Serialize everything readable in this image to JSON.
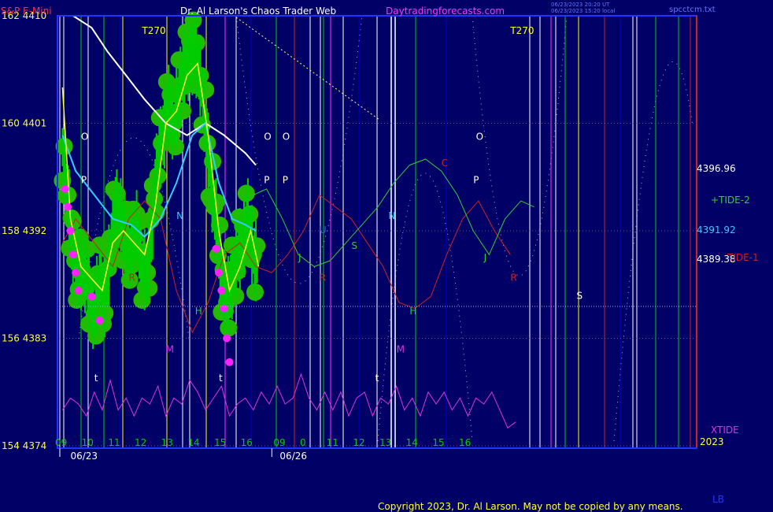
{
  "header": {
    "instrument": "S&P E-Mini",
    "title": "Dr. Al Larson's Chaos Trader Web",
    "site": "Daytradingforecasts.com",
    "timestamp_line1": "06/23/2023 20:20 UT",
    "timestamp_line2": "06/23/2023 15:20 local",
    "file": "spcctcm.txt"
  },
  "colors": {
    "background": "#000066",
    "price_bars": "#00cc00",
    "green_circles": "#22bb00",
    "magenta_dots": "#ff22ff",
    "yellow_ma": "#ffff33",
    "white_ma": "#ffffff",
    "cyan_ma": "#33ccff",
    "tide1": "#cc2222",
    "tide2": "#33cc33",
    "xtide": "#dd33dd",
    "frame": "#2233ff"
  },
  "footer": {
    "copyright": "Copyright 2023, Dr. Al Larson. May not be copied by any means.",
    "corner": "LB",
    "year": "2023"
  },
  "chart_data": {
    "type": "line",
    "y_axis": {
      "ticks": [
        {
          "index": "162",
          "price": "4410"
        },
        {
          "index": "160",
          "price": "4401"
        },
        {
          "index": "158",
          "price": "4392"
        },
        {
          "index": "156",
          "price": "4383"
        },
        {
          "index": "154",
          "price": "4374"
        }
      ],
      "ylim": [
        4374,
        4410
      ]
    },
    "x_axis": {
      "dates": [
        "06/23",
        "06/26"
      ],
      "hours_day1": [
        "09",
        "10",
        "11",
        "12",
        "13",
        "14",
        "15",
        "16"
      ],
      "hours_day2": [
        "09",
        "0",
        "11",
        "12",
        "13",
        "14",
        "15",
        "16"
      ],
      "span_hours": [
        9,
        33
      ],
      "day_break_hour": 16.2
    },
    "series_labels": [
      {
        "name": "+TIDE-2",
        "value": "4396.96",
        "color": "#33cc33"
      },
      {
        "name": "TIDE-1",
        "value": "4389.38",
        "color": "#cc2222"
      },
      {
        "name": "XTIDE",
        "value": "",
        "color": "#dd33dd"
      }
    ],
    "right_prices": {
      "upper": "4396.96",
      "middle": "4391.92",
      "lower": "4389.38"
    },
    "annotations": [
      {
        "text": "T270",
        "hour": 12.1,
        "price": 4408.5
      },
      {
        "text": "T270",
        "hour": 26.0,
        "price": 4408.5
      },
      {
        "text": "O",
        "hour": 9.8,
        "price": 4399.6
      },
      {
        "text": "P",
        "hour": 9.8,
        "price": 4396.0
      },
      {
        "text": "N",
        "hour": 13.4,
        "price": 4393.0
      },
      {
        "text": "O",
        "hour": 16.7,
        "price": 4399.6
      },
      {
        "text": "P",
        "hour": 16.7,
        "price": 4396.0
      },
      {
        "text": "O",
        "hour": 17.4,
        "price": 4399.6
      },
      {
        "text": "P",
        "hour": 17.4,
        "price": 4396.0
      },
      {
        "text": "U",
        "hour": 18.8,
        "price": 4391.8
      },
      {
        "text": "J",
        "hour": 18.0,
        "price": 4389.5
      },
      {
        "text": "R",
        "hour": 18.8,
        "price": 4387.8
      },
      {
        "text": "S",
        "hour": 20.0,
        "price": 4390.5
      },
      {
        "text": "N",
        "hour": 21.4,
        "price": 4393.0
      },
      {
        "text": "C",
        "hour": 23.4,
        "price": 4397.4
      },
      {
        "text": "O",
        "hour": 24.7,
        "price": 4399.6
      },
      {
        "text": "P",
        "hour": 24.6,
        "price": 4396.0
      },
      {
        "text": "J",
        "hour": 25.0,
        "price": 4389.5
      },
      {
        "text": "R",
        "hour": 26.0,
        "price": 4387.8
      },
      {
        "text": "H",
        "hour": 14.1,
        "price": 4385.0
      },
      {
        "text": "H",
        "hour": 22.2,
        "price": 4385.0
      },
      {
        "text": "R",
        "hour": 11.6,
        "price": 4387.8
      },
      {
        "text": "M",
        "hour": 13.0,
        "price": 4381.8
      },
      {
        "text": "M",
        "hour": 21.7,
        "price": 4381.8
      },
      {
        "text": "t",
        "hour": 10.3,
        "price": 4379.4
      },
      {
        "text": "t",
        "hour": 15.0,
        "price": 4379.4
      },
      {
        "text": "t",
        "hour": 20.9,
        "price": 4379.4
      },
      {
        "text": "S",
        "hour": 28.5,
        "price": 4386.3
      }
    ],
    "price_path": [
      [
        9.1,
        4399
      ],
      [
        9.3,
        4395
      ],
      [
        9.5,
        4390
      ],
      [
        9.7,
        4388.5
      ],
      [
        9.9,
        4389
      ],
      [
        10.1,
        4387
      ],
      [
        10.3,
        4385
      ],
      [
        10.5,
        4388
      ],
      [
        10.7,
        4386.5
      ],
      [
        10.9,
        4390
      ],
      [
        11.1,
        4394
      ],
      [
        11.3,
        4393
      ],
      [
        11.5,
        4391
      ],
      [
        11.7,
        4390.5
      ],
      [
        11.9,
        4392
      ],
      [
        12.1,
        4389
      ],
      [
        12.3,
        4388.5
      ],
      [
        12.5,
        4393
      ],
      [
        12.7,
        4398
      ],
      [
        12.9,
        4400
      ],
      [
        13.1,
        4402.5
      ],
      [
        13.3,
        4401
      ],
      [
        13.5,
        4403.5
      ],
      [
        13.7,
        4405.5
      ],
      [
        13.9,
        4406.5
      ],
      [
        14.1,
        4407
      ],
      [
        14.3,
        4405
      ],
      [
        14.5,
        4401
      ],
      [
        14.7,
        4396
      ],
      [
        14.9,
        4393
      ],
      [
        15.1,
        4388
      ],
      [
        15.3,
        4386
      ],
      [
        15.5,
        4388
      ],
      [
        15.7,
        4390
      ],
      [
        15.9,
        4391
      ],
      [
        16.1,
        4393
      ],
      [
        16.3,
        4390
      ],
      [
        16.5,
        4389
      ]
    ],
    "white_ma": [
      [
        9.5,
        4410
      ],
      [
        10.2,
        4409
      ],
      [
        10.8,
        4407
      ],
      [
        11.5,
        4405
      ],
      [
        12.2,
        4403
      ],
      [
        13,
        4401
      ],
      [
        13.8,
        4400
      ],
      [
        14.5,
        4401
      ],
      [
        15.2,
        4400
      ],
      [
        16,
        4398.5
      ],
      [
        16.4,
        4397.5
      ]
    ],
    "cyan_ma": [
      [
        9.1,
        4400
      ],
      [
        9.6,
        4397
      ],
      [
        10.3,
        4395
      ],
      [
        11,
        4393
      ],
      [
        11.7,
        4392.5
      ],
      [
        12.2,
        4391.5
      ],
      [
        12.8,
        4393
      ],
      [
        13.4,
        4396
      ],
      [
        14.0,
        4400
      ],
      [
        14.5,
        4401
      ],
      [
        15.0,
        4396
      ],
      [
        15.5,
        4393
      ],
      [
        16.0,
        4392.5
      ],
      [
        16.4,
        4392
      ]
    ],
    "yellow_ma": [
      [
        9.1,
        4404
      ],
      [
        9.4,
        4393
      ],
      [
        9.8,
        4389
      ],
      [
        10.2,
        4388
      ],
      [
        10.6,
        4387
      ],
      [
        11.0,
        4391
      ],
      [
        11.4,
        4392
      ],
      [
        11.8,
        4391
      ],
      [
        12.2,
        4390
      ],
      [
        12.6,
        4394
      ],
      [
        13.0,
        4401
      ],
      [
        13.4,
        4402
      ],
      [
        13.8,
        4405
      ],
      [
        14.2,
        4406
      ],
      [
        14.6,
        4400
      ],
      [
        15.0,
        4392
      ],
      [
        15.4,
        4387
      ],
      [
        15.8,
        4389
      ],
      [
        16.2,
        4392
      ],
      [
        16.5,
        4389
      ]
    ],
    "tide1": [
      [
        9.1,
        4391
      ],
      [
        9.6,
        4393
      ],
      [
        10.3,
        4391
      ],
      [
        11.0,
        4389
      ],
      [
        11.6,
        4393
      ],
      [
        12.2,
        4394.5
      ],
      [
        12.8,
        4393
      ],
      [
        13.4,
        4387
      ],
      [
        14.0,
        4383.5
      ],
      [
        14.6,
        4386
      ],
      [
        15.2,
        4390
      ],
      [
        15.8,
        4391
      ],
      [
        16.4,
        4389
      ],
      [
        17.0,
        4388.5
      ],
      [
        17.6,
        4390
      ],
      [
        18.2,
        4392
      ],
      [
        18.8,
        4395
      ],
      [
        19.4,
        4394
      ],
      [
        20.0,
        4393
      ],
      [
        20.6,
        4391
      ],
      [
        21.2,
        4389
      ],
      [
        21.8,
        4386
      ],
      [
        22.4,
        4385.5
      ],
      [
        23.0,
        4386.5
      ],
      [
        23.6,
        4390
      ],
      [
        24.2,
        4393
      ],
      [
        24.8,
        4394.5
      ],
      [
        25.4,
        4392
      ],
      [
        26.0,
        4390
      ]
    ],
    "tide2": [
      [
        16.3,
        4395
      ],
      [
        16.8,
        4395.5
      ],
      [
        17.4,
        4393
      ],
      [
        18.0,
        4390
      ],
      [
        18.6,
        4389
      ],
      [
        19.2,
        4389.5
      ],
      [
        19.8,
        4391
      ],
      [
        20.4,
        4392.5
      ],
      [
        21.0,
        4394
      ],
      [
        21.6,
        4396
      ],
      [
        22.2,
        4397.5
      ],
      [
        22.8,
        4398
      ],
      [
        23.4,
        4397
      ],
      [
        24.0,
        4395
      ],
      [
        24.6,
        4392
      ],
      [
        25.2,
        4390
      ],
      [
        25.8,
        4393
      ],
      [
        26.4,
        4394.5
      ],
      [
        26.9,
        4394
      ]
    ],
    "xtide": [
      [
        9.1,
        4377
      ],
      [
        9.4,
        4378
      ],
      [
        9.7,
        4377.5
      ],
      [
        10.0,
        4376.5
      ],
      [
        10.3,
        4378.5
      ],
      [
        10.6,
        4377
      ],
      [
        10.9,
        4379.5
      ],
      [
        11.2,
        4377
      ],
      [
        11.5,
        4378
      ],
      [
        11.8,
        4376.5
      ],
      [
        12.1,
        4378
      ],
      [
        12.4,
        4377.5
      ],
      [
        12.7,
        4379
      ],
      [
        13.0,
        4376.5
      ],
      [
        13.3,
        4378
      ],
      [
        13.6,
        4377.5
      ],
      [
        13.9,
        4379.5
      ],
      [
        14.2,
        4378.5
      ],
      [
        14.5,
        4377
      ],
      [
        14.8,
        4378
      ],
      [
        15.1,
        4379
      ],
      [
        15.4,
        4376.5
      ],
      [
        15.7,
        4377.5
      ],
      [
        16.0,
        4378
      ],
      [
        16.3,
        4377
      ],
      [
        16.6,
        4378.5
      ],
      [
        16.9,
        4377.5
      ],
      [
        17.2,
        4379
      ],
      [
        17.5,
        4377.5
      ],
      [
        17.8,
        4378
      ],
      [
        18.1,
        4380
      ],
      [
        18.4,
        4378
      ],
      [
        18.7,
        4377
      ],
      [
        19.0,
        4378.5
      ],
      [
        19.3,
        4377
      ],
      [
        19.6,
        4378.5
      ],
      [
        19.9,
        4376.5
      ],
      [
        20.2,
        4378
      ],
      [
        20.5,
        4378.5
      ],
      [
        20.8,
        4376.5
      ],
      [
        21.1,
        4378
      ],
      [
        21.4,
        4377.5
      ],
      [
        21.7,
        4379
      ],
      [
        22.0,
        4377
      ],
      [
        22.3,
        4378
      ],
      [
        22.6,
        4376.5
      ],
      [
        22.9,
        4378.5
      ],
      [
        23.2,
        4377.5
      ],
      [
        23.5,
        4378.5
      ],
      [
        23.8,
        4377
      ],
      [
        24.1,
        4378
      ],
      [
        24.4,
        4376.5
      ],
      [
        24.7,
        4378
      ],
      [
        25.0,
        4377.5
      ],
      [
        25.3,
        4378.5
      ],
      [
        25.6,
        4377
      ],
      [
        25.9,
        4375.5
      ],
      [
        26.2,
        4376
      ]
    ],
    "magenta_points": [
      [
        9.2,
        4395.5
      ],
      [
        9.3,
        4394
      ],
      [
        9.4,
        4392
      ],
      [
        9.5,
        4390
      ],
      [
        9.6,
        4388.5
      ],
      [
        9.7,
        4387
      ],
      [
        10.2,
        4386.5
      ],
      [
        10.5,
        4384.5
      ],
      [
        14.9,
        4390.5
      ],
      [
        15.0,
        4388.5
      ],
      [
        15.1,
        4387
      ],
      [
        15.2,
        4385.5
      ],
      [
        15.3,
        4383
      ],
      [
        15.4,
        4381
      ]
    ]
  }
}
